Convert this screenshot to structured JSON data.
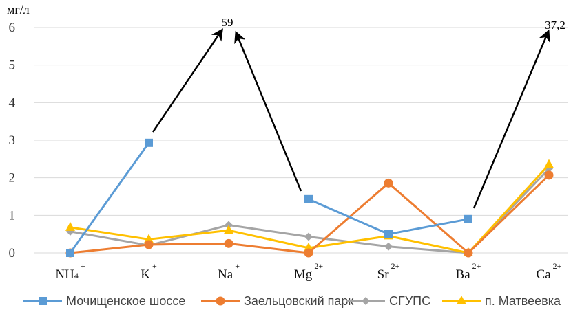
{
  "chart_data": {
    "type": "line",
    "ylabel": "мг/л",
    "ylim": [
      0,
      6
    ],
    "y_ticks": [
      "0",
      "1",
      "2",
      "3",
      "4",
      "5",
      "6"
    ],
    "grid": "horizontal",
    "legend_position": "bottom",
    "categories": [
      {
        "base": "NH",
        "sub": "4",
        "sup": "+"
      },
      {
        "base": "K",
        "sub": "",
        "sup": "+"
      },
      {
        "base": "Na",
        "sub": "",
        "sup": "+"
      },
      {
        "base": "Mg",
        "sub": "",
        "sup": "2+"
      },
      {
        "base": "Sr",
        "sub": "",
        "sup": "2+"
      },
      {
        "base": "Ba",
        "sub": "",
        "sup": "2+"
      },
      {
        "base": "Ca",
        "sub": "",
        "sup": "2+"
      }
    ],
    "series": [
      {
        "name": "Мочищенское шоссе",
        "color": "#5b9bd5",
        "marker": "square",
        "values": [
          0,
          2.93,
          null,
          1.43,
          0.5,
          0.9,
          null
        ]
      },
      {
        "name": "Заельцовский парк",
        "color": "#ed7d31",
        "marker": "circle",
        "values": [
          0,
          0.22,
          0.25,
          0,
          1.86,
          0,
          2.07
        ]
      },
      {
        "name": "СГУПС",
        "color": "#a5a5a5",
        "marker": "diamond",
        "values": [
          0.57,
          0.2,
          0.74,
          0.43,
          0.17,
          0,
          2.24
        ]
      },
      {
        "name": "п. Матвеевка",
        "color": "#ffc000",
        "marker": "triangle",
        "values": [
          0.68,
          0.36,
          0.6,
          0.13,
          0.45,
          0,
          2.35
        ]
      }
    ],
    "annotations": [
      {
        "text": "59",
        "category_index": 2,
        "value": 59
      },
      {
        "text": "37,2",
        "category_index": 6,
        "value": 37.2
      }
    ]
  }
}
